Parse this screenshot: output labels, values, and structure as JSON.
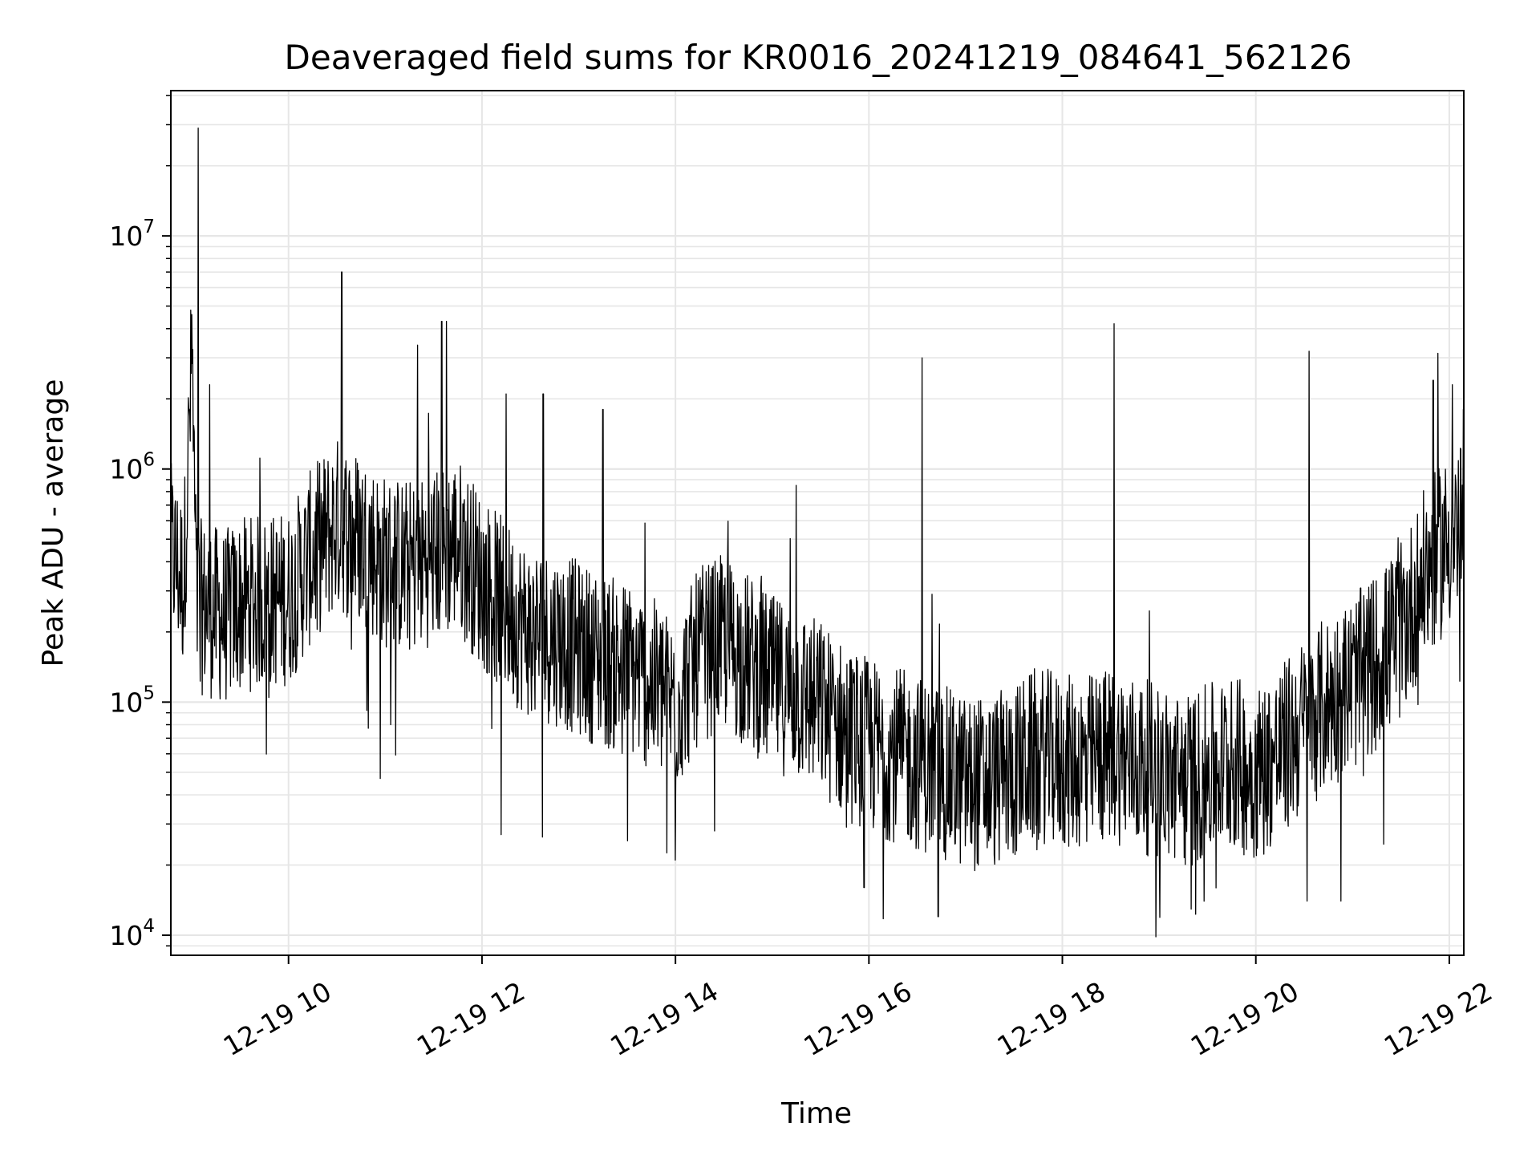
{
  "chart_data": {
    "type": "line",
    "title": "Deaveraged field sums for KR0016_20241219_084641_562126",
    "xlabel": "Time",
    "ylabel": "Peak ADU - average",
    "x_scale": "time",
    "y_scale": "log",
    "xlim": [
      "2024-12-19 08:47",
      "2024-12-19 22:09"
    ],
    "ylim": [
      8200,
      42000000
    ],
    "x_ticks": [
      {
        "value": "2024-12-19 10:00",
        "label": "12-19 10"
      },
      {
        "value": "2024-12-19 12:00",
        "label": "12-19 12"
      },
      {
        "value": "2024-12-19 14:00",
        "label": "12-19 14"
      },
      {
        "value": "2024-12-19 16:00",
        "label": "12-19 16"
      },
      {
        "value": "2024-12-19 18:00",
        "label": "12-19 18"
      },
      {
        "value": "2024-12-19 20:00",
        "label": "12-19 20"
      },
      {
        "value": "2024-12-19 22:00",
        "label": "12-19 22"
      }
    ],
    "y_ticks": [
      {
        "value": 10000,
        "base": "10",
        "exp": "4"
      },
      {
        "value": 100000,
        "base": "10",
        "exp": "5"
      },
      {
        "value": 1000000,
        "base": "10",
        "exp": "6"
      },
      {
        "value": 10000000,
        "base": "10",
        "exp": "7"
      }
    ],
    "grid": true,
    "line_color": "#000000",
    "grid_color": "#e6e6e6",
    "series": [
      {
        "x": [
          "2024-12-19 08:47",
          "2024-12-19 08:55",
          "2024-12-19 09:00",
          "2024-12-19 09:03",
          "2024-12-19 09:10",
          "2024-12-19 09:20",
          "2024-12-19 09:30",
          "2024-12-19 09:45",
          "2024-12-19 10:00",
          "2024-12-19 10:15",
          "2024-12-19 10:30",
          "2024-12-19 10:45",
          "2024-12-19 11:00",
          "2024-12-19 11:15",
          "2024-12-19 11:30",
          "2024-12-19 11:45",
          "2024-12-19 12:00",
          "2024-12-19 12:15",
          "2024-12-19 12:30",
          "2024-12-19 12:45",
          "2024-12-19 13:00",
          "2024-12-19 13:15",
          "2024-12-19 13:30",
          "2024-12-19 13:45",
          "2024-12-19 14:00",
          "2024-12-19 14:15",
          "2024-12-19 14:30",
          "2024-12-19 14:45",
          "2024-12-19 15:00",
          "2024-12-19 15:15",
          "2024-12-19 15:30",
          "2024-12-19 15:45",
          "2024-12-19 16:00",
          "2024-12-19 16:15",
          "2024-12-19 16:30",
          "2024-12-19 16:45",
          "2024-12-19 17:00",
          "2024-12-19 17:15",
          "2024-12-19 17:30",
          "2024-12-19 17:45",
          "2024-12-19 18:00",
          "2024-12-19 18:15",
          "2024-12-19 18:30",
          "2024-12-19 18:45",
          "2024-12-19 19:00",
          "2024-12-19 19:15",
          "2024-12-19 19:30",
          "2024-12-19 19:45",
          "2024-12-19 20:00",
          "2024-12-19 20:15",
          "2024-12-19 20:30",
          "2024-12-19 20:45",
          "2024-12-19 21:00",
          "2024-12-19 21:15",
          "2024-12-19 21:30",
          "2024-12-19 21:45",
          "2024-12-19 22:00",
          "2024-12-19 22:09"
        ],
        "y": [
          450000,
          320000,
          2900000,
          260000,
          250000,
          230000,
          260000,
          270000,
          280000,
          430000,
          580000,
          500000,
          400000,
          380000,
          420000,
          480000,
          330000,
          250000,
          200000,
          190000,
          170000,
          150000,
          140000,
          120000,
          95000,
          160000,
          180000,
          150000,
          120000,
          110000,
          95000,
          75000,
          65000,
          60000,
          55000,
          50000,
          45000,
          45000,
          50000,
          60000,
          55000,
          55000,
          60000,
          55000,
          50000,
          45000,
          50000,
          55000,
          50000,
          60000,
          80000,
          100000,
          120000,
          150000,
          200000,
          350000,
          500000,
          550000
        ]
      }
    ],
    "spikes": [
      {
        "x": "2024-12-19 09:04",
        "y": 29000000
      },
      {
        "x": "2024-12-19 09:00",
        "y": 4600000
      },
      {
        "x": "2024-12-19 09:11",
        "y": 2300000
      },
      {
        "x": "2024-12-19 10:33",
        "y": 7000000
      },
      {
        "x": "2024-12-19 11:20",
        "y": 3400000
      },
      {
        "x": "2024-12-19 11:35",
        "y": 4300000
      },
      {
        "x": "2024-12-19 11:38",
        "y": 4300000
      },
      {
        "x": "2024-12-19 12:15",
        "y": 2100000
      },
      {
        "x": "2024-12-19 12:38",
        "y": 2100000
      },
      {
        "x": "2024-12-19 13:15",
        "y": 1800000
      },
      {
        "x": "2024-12-19 15:15",
        "y": 850000
      },
      {
        "x": "2024-12-19 16:33",
        "y": 3000000
      },
      {
        "x": "2024-12-19 18:32",
        "y": 4200000
      },
      {
        "x": "2024-12-19 20:33",
        "y": 3200000
      },
      {
        "x": "2024-12-19 21:50",
        "y": 2400000
      },
      {
        "x": "2024-12-19 22:02",
        "y": 2300000
      },
      {
        "x": "2024-12-19 12:12",
        "y": 27000
      },
      {
        "x": "2024-12-19 14:00",
        "y": 21000
      },
      {
        "x": "2024-12-19 15:57",
        "y": 16000
      },
      {
        "x": "2024-12-19 16:43",
        "y": 12000
      },
      {
        "x": "2024-12-19 19:28",
        "y": 14000
      },
      {
        "x": "2024-12-19 10:57",
        "y": 47000
      }
    ]
  }
}
